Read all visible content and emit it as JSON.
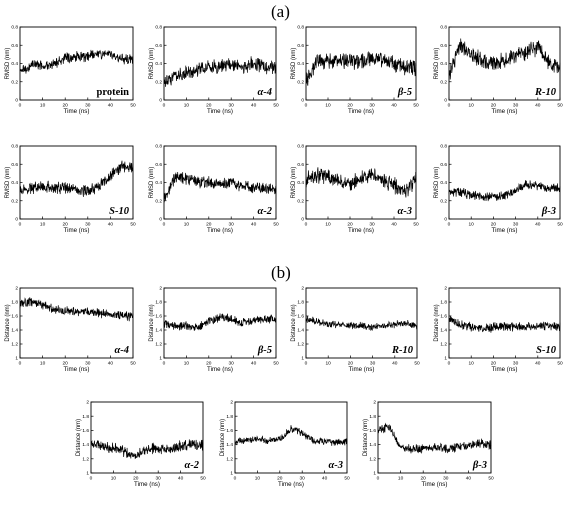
{
  "figure": {
    "label_a": "(a)",
    "label_b": "(b)"
  },
  "chart_data": [
    {
      "type": "line",
      "panel": "a",
      "title": "protein",
      "xlabel": "Time (ns)",
      "ylabel": "RMSD (nm)",
      "xlim": [
        0,
        50
      ],
      "ylim": [
        0,
        0.8
      ],
      "xticks": [
        0,
        10,
        20,
        30,
        40,
        50
      ],
      "yticks": [
        0,
        0.2,
        0.4,
        0.6,
        0.8
      ],
      "x": [
        0,
        5,
        10,
        15,
        20,
        25,
        30,
        35,
        40,
        45,
        50
      ],
      "y": [
        0.3,
        0.38,
        0.38,
        0.4,
        0.45,
        0.47,
        0.48,
        0.5,
        0.5,
        0.44,
        0.44
      ],
      "noise": 0.045
    },
    {
      "type": "line",
      "panel": "a",
      "title": "α-4",
      "xlabel": "Time (ns)",
      "ylabel": "RMSD (nm)",
      "xlim": [
        0,
        50
      ],
      "ylim": [
        0,
        0.8
      ],
      "xticks": [
        0,
        10,
        20,
        30,
        40,
        50
      ],
      "yticks": [
        0,
        0.2,
        0.4,
        0.6,
        0.8
      ],
      "x": [
        0,
        5,
        10,
        15,
        20,
        25,
        30,
        35,
        40,
        45,
        50
      ],
      "y": [
        0.18,
        0.28,
        0.3,
        0.33,
        0.36,
        0.37,
        0.38,
        0.36,
        0.4,
        0.36,
        0.36
      ],
      "noise": 0.06
    },
    {
      "type": "line",
      "panel": "a",
      "title": "β-5",
      "xlabel": "Time (ns)",
      "ylabel": "RMSD (nm)",
      "xlim": [
        0,
        50
      ],
      "ylim": [
        0,
        0.8
      ],
      "xticks": [
        0,
        10,
        20,
        30,
        40,
        50
      ],
      "yticks": [
        0,
        0.2,
        0.4,
        0.6,
        0.8
      ],
      "x": [
        0,
        5,
        10,
        15,
        20,
        25,
        30,
        35,
        40,
        45,
        50
      ],
      "y": [
        0.2,
        0.42,
        0.44,
        0.42,
        0.44,
        0.42,
        0.46,
        0.44,
        0.4,
        0.36,
        0.34
      ],
      "noise": 0.07
    },
    {
      "type": "line",
      "panel": "a",
      "title": "R-10",
      "xlabel": "Time (ns)",
      "ylabel": "RMSD (nm)",
      "xlim": [
        0,
        50
      ],
      "ylim": [
        0,
        0.8
      ],
      "xticks": [
        0,
        10,
        20,
        30,
        40,
        50
      ],
      "yticks": [
        0,
        0.2,
        0.4,
        0.6,
        0.8
      ],
      "x": [
        0,
        5,
        10,
        15,
        20,
        25,
        30,
        35,
        40,
        45,
        50
      ],
      "y": [
        0.28,
        0.6,
        0.52,
        0.42,
        0.4,
        0.42,
        0.48,
        0.52,
        0.58,
        0.42,
        0.36
      ],
      "noise": 0.07
    },
    {
      "type": "line",
      "panel": "a",
      "title": "S-10",
      "xlabel": "Time (ns)",
      "ylabel": "RMSD (nm)",
      "xlim": [
        0,
        50
      ],
      "ylim": [
        0,
        0.8
      ],
      "xticks": [
        0,
        10,
        20,
        30,
        40,
        50
      ],
      "yticks": [
        0,
        0.2,
        0.4,
        0.6,
        0.8
      ],
      "x": [
        0,
        5,
        10,
        15,
        20,
        25,
        30,
        35,
        40,
        45,
        50
      ],
      "y": [
        0.32,
        0.34,
        0.36,
        0.34,
        0.34,
        0.32,
        0.3,
        0.36,
        0.48,
        0.58,
        0.56
      ],
      "noise": 0.05
    },
    {
      "type": "line",
      "panel": "a",
      "title": "α-2",
      "xlabel": "Time (ns)",
      "ylabel": "RMSD (nm)",
      "xlim": [
        0,
        50
      ],
      "ylim": [
        0,
        0.8
      ],
      "xticks": [
        0,
        10,
        20,
        30,
        40,
        50
      ],
      "yticks": [
        0,
        0.2,
        0.4,
        0.6,
        0.8
      ],
      "x": [
        0,
        5,
        10,
        15,
        20,
        25,
        30,
        35,
        40,
        45,
        50
      ],
      "y": [
        0.22,
        0.46,
        0.44,
        0.4,
        0.4,
        0.38,
        0.4,
        0.36,
        0.34,
        0.34,
        0.34
      ],
      "noise": 0.05
    },
    {
      "type": "line",
      "panel": "a",
      "title": "α-3",
      "xlabel": "Time (ns)",
      "ylabel": "RMSD (nm)",
      "xlim": [
        0,
        50
      ],
      "ylim": [
        0,
        0.8
      ],
      "xticks": [
        0,
        10,
        20,
        30,
        40,
        50
      ],
      "yticks": [
        0,
        0.2,
        0.4,
        0.6,
        0.8
      ],
      "x": [
        0,
        5,
        10,
        15,
        20,
        25,
        30,
        35,
        40,
        45,
        50
      ],
      "y": [
        0.44,
        0.48,
        0.46,
        0.4,
        0.38,
        0.44,
        0.48,
        0.42,
        0.38,
        0.28,
        0.46
      ],
      "noise": 0.07
    },
    {
      "type": "line",
      "panel": "a",
      "title": "β-3",
      "xlabel": "Time (ns)",
      "ylabel": "RMSD (nm)",
      "xlim": [
        0,
        50
      ],
      "ylim": [
        0,
        0.8
      ],
      "xticks": [
        0,
        10,
        20,
        30,
        40,
        50
      ],
      "yticks": [
        0,
        0.2,
        0.4,
        0.6,
        0.8
      ],
      "x": [
        0,
        5,
        10,
        15,
        20,
        25,
        30,
        35,
        40,
        45,
        50
      ],
      "y": [
        0.3,
        0.3,
        0.26,
        0.24,
        0.24,
        0.26,
        0.32,
        0.38,
        0.36,
        0.34,
        0.34
      ],
      "noise": 0.04
    },
    {
      "type": "line",
      "panel": "b",
      "title": "α-4",
      "xlabel": "Time (ns)",
      "ylabel": "Distance (nm)",
      "xlim": [
        0,
        50
      ],
      "ylim": [
        1,
        2
      ],
      "xticks": [
        0,
        10,
        20,
        30,
        40,
        50
      ],
      "yticks": [
        1,
        1.2,
        1.4,
        1.6,
        1.8,
        2
      ],
      "x": [
        0,
        5,
        10,
        15,
        20,
        25,
        30,
        35,
        40,
        45,
        50
      ],
      "y": [
        1.76,
        1.8,
        1.76,
        1.7,
        1.68,
        1.66,
        1.66,
        1.64,
        1.62,
        1.6,
        1.6
      ],
      "noise": 0.05
    },
    {
      "type": "line",
      "panel": "b",
      "title": "β-5",
      "xlabel": "Time (ns)",
      "ylabel": "Distance (nm)",
      "xlim": [
        0,
        50
      ],
      "ylim": [
        1,
        2
      ],
      "xticks": [
        0,
        10,
        20,
        30,
        40,
        50
      ],
      "yticks": [
        1,
        1.2,
        1.4,
        1.6,
        1.8,
        2
      ],
      "x": [
        0,
        5,
        10,
        15,
        20,
        25,
        30,
        35,
        40,
        45,
        50
      ],
      "y": [
        1.48,
        1.46,
        1.46,
        1.44,
        1.52,
        1.58,
        1.56,
        1.5,
        1.54,
        1.56,
        1.56
      ],
      "noise": 0.05
    },
    {
      "type": "line",
      "panel": "b",
      "title": "R-10",
      "xlabel": "Time (ns)",
      "ylabel": "Distance (nm)",
      "xlim": [
        0,
        50
      ],
      "ylim": [
        1,
        2
      ],
      "xticks": [
        0,
        10,
        20,
        30,
        40,
        50
      ],
      "yticks": [
        1,
        1.2,
        1.4,
        1.6,
        1.8,
        2
      ],
      "x": [
        0,
        5,
        10,
        15,
        20,
        25,
        30,
        35,
        40,
        45,
        50
      ],
      "y": [
        1.56,
        1.52,
        1.48,
        1.48,
        1.46,
        1.46,
        1.44,
        1.46,
        1.48,
        1.5,
        1.46
      ],
      "noise": 0.04
    },
    {
      "type": "line",
      "panel": "b",
      "title": "S-10",
      "xlabel": "Time (ns)",
      "ylabel": "Distance (nm)",
      "xlim": [
        0,
        50
      ],
      "ylim": [
        1,
        2
      ],
      "xticks": [
        0,
        10,
        20,
        30,
        40,
        50
      ],
      "yticks": [
        1,
        1.2,
        1.4,
        1.6,
        1.8,
        2
      ],
      "x": [
        0,
        5,
        10,
        15,
        20,
        25,
        30,
        35,
        40,
        45,
        50
      ],
      "y": [
        1.56,
        1.48,
        1.44,
        1.42,
        1.44,
        1.46,
        1.44,
        1.44,
        1.46,
        1.46,
        1.44
      ],
      "noise": 0.05
    },
    {
      "type": "line",
      "panel": "b",
      "title": "α-2",
      "xlabel": "Time (ns)",
      "ylabel": "Distance (nm)",
      "xlim": [
        0,
        50
      ],
      "ylim": [
        1,
        2
      ],
      "xticks": [
        0,
        10,
        20,
        30,
        40,
        50
      ],
      "yticks": [
        1,
        1.2,
        1.4,
        1.6,
        1.8,
        2
      ],
      "x": [
        0,
        5,
        10,
        15,
        20,
        25,
        30,
        35,
        40,
        45,
        50
      ],
      "y": [
        1.42,
        1.38,
        1.36,
        1.3,
        1.24,
        1.34,
        1.36,
        1.34,
        1.38,
        1.4,
        1.4
      ],
      "noise": 0.06
    },
    {
      "type": "line",
      "panel": "b",
      "title": "α-3",
      "xlabel": "Time (ns)",
      "ylabel": "Distance (nm)",
      "xlim": [
        0,
        50
      ],
      "ylim": [
        1,
        2
      ],
      "xticks": [
        0,
        10,
        20,
        30,
        40,
        50
      ],
      "yticks": [
        1,
        1.2,
        1.4,
        1.6,
        1.8,
        2
      ],
      "x": [
        0,
        5,
        10,
        15,
        20,
        25,
        30,
        35,
        40,
        45,
        50
      ],
      "y": [
        1.44,
        1.46,
        1.48,
        1.46,
        1.48,
        1.62,
        1.56,
        1.46,
        1.44,
        1.44,
        1.44
      ],
      "noise": 0.04
    },
    {
      "type": "line",
      "panel": "b",
      "title": "β-3",
      "xlabel": "Time (ns)",
      "ylabel": "Distance (nm)",
      "xlim": [
        0,
        50
      ],
      "ylim": [
        1,
        2
      ],
      "xticks": [
        0,
        10,
        20,
        30,
        40,
        50
      ],
      "yticks": [
        1,
        1.2,
        1.4,
        1.6,
        1.8,
        2
      ],
      "x": [
        0,
        5,
        10,
        15,
        20,
        25,
        30,
        35,
        40,
        45,
        50
      ],
      "y": [
        1.6,
        1.66,
        1.36,
        1.34,
        1.34,
        1.36,
        1.34,
        1.36,
        1.38,
        1.42,
        1.4
      ],
      "noise": 0.05
    }
  ]
}
